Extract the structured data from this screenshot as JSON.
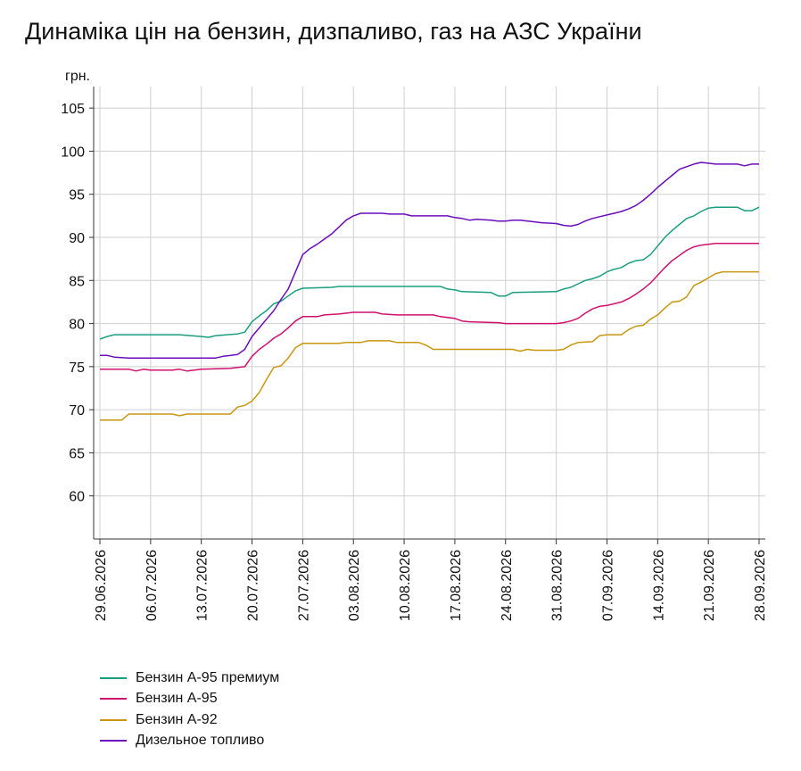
{
  "chart_data": {
    "type": "line",
    "title": "Динаміка цін на бензин, дизпаливо, газ на АЗС України",
    "ylabel": "грн.",
    "xlabel": "",
    "ylim": [
      55,
      107.5
    ],
    "yticks": [
      60,
      65,
      70,
      75,
      80,
      85,
      90,
      95,
      100,
      105
    ],
    "grid": true,
    "legend_position": "bottom-left",
    "xlim": [
      "2026-06-29",
      "2026-09-28"
    ],
    "x_tick_labels": [
      "29.06.2026",
      "06.07.2026",
      "13.07.2026",
      "20.07.2026",
      "27.07.2026",
      "03.08.2026",
      "10.08.2026",
      "17.08.2026",
      "24.08.2026",
      "31.08.2026",
      "07.09.2026",
      "14.09.2026",
      "21.09.2026",
      "28.09.2026"
    ],
    "x_tick_dates": [
      "2026-06-29",
      "2026-07-06",
      "2026-07-13",
      "2026-07-20",
      "2026-07-27",
      "2026-08-03",
      "2026-08-10",
      "2026-08-17",
      "2026-08-24",
      "2026-08-31",
      "2026-09-07",
      "2026-09-14",
      "2026-09-21",
      "2026-09-28"
    ],
    "series": [
      {
        "name": "Бензин А-95 премиум",
        "color": "#1a9e80",
        "points": [
          [
            "2026-06-29",
            78.2
          ],
          [
            "2026-06-30",
            78.5
          ],
          [
            "2026-07-01",
            78.7
          ],
          [
            "2026-07-05",
            78.7
          ],
          [
            "2026-07-10",
            78.7
          ],
          [
            "2026-07-13",
            78.5
          ],
          [
            "2026-07-14",
            78.4
          ],
          [
            "2026-07-15",
            78.6
          ],
          [
            "2026-07-18",
            78.8
          ],
          [
            "2026-07-19",
            79.0
          ],
          [
            "2026-07-20",
            80.2
          ],
          [
            "2026-07-21",
            80.9
          ],
          [
            "2026-07-22",
            81.5
          ],
          [
            "2026-07-23",
            82.3
          ],
          [
            "2026-07-24",
            82.6
          ],
          [
            "2026-07-25",
            83.2
          ],
          [
            "2026-07-26",
            83.8
          ],
          [
            "2026-07-27",
            84.1
          ],
          [
            "2026-07-31",
            84.2
          ],
          [
            "2026-08-01",
            84.3
          ],
          [
            "2026-08-05",
            84.3
          ],
          [
            "2026-08-10",
            84.3
          ],
          [
            "2026-08-15",
            84.3
          ],
          [
            "2026-08-16",
            84.0
          ],
          [
            "2026-08-17",
            83.9
          ],
          [
            "2026-08-18",
            83.7
          ],
          [
            "2026-08-22",
            83.6
          ],
          [
            "2026-08-23",
            83.2
          ],
          [
            "2026-08-24",
            83.2
          ],
          [
            "2026-08-25",
            83.6
          ],
          [
            "2026-08-31",
            83.7
          ],
          [
            "2026-09-01",
            84.0
          ],
          [
            "2026-09-02",
            84.2
          ],
          [
            "2026-09-04",
            85.0
          ],
          [
            "2026-09-05",
            85.2
          ],
          [
            "2026-09-06",
            85.5
          ],
          [
            "2026-09-07",
            86.0
          ],
          [
            "2026-09-08",
            86.3
          ],
          [
            "2026-09-09",
            86.5
          ],
          [
            "2026-09-10",
            87.0
          ],
          [
            "2026-09-11",
            87.3
          ],
          [
            "2026-09-12",
            87.4
          ],
          [
            "2026-09-13",
            88.0
          ],
          [
            "2026-09-14",
            89.0
          ],
          [
            "2026-09-15",
            90.0
          ],
          [
            "2026-09-16",
            90.8
          ],
          [
            "2026-09-17",
            91.5
          ],
          [
            "2026-09-18",
            92.2
          ],
          [
            "2026-09-19",
            92.5
          ],
          [
            "2026-09-20",
            93.0
          ],
          [
            "2026-09-21",
            93.4
          ],
          [
            "2026-09-22",
            93.5
          ],
          [
            "2026-09-25",
            93.5
          ],
          [
            "2026-09-26",
            93.1
          ],
          [
            "2026-09-27",
            93.1
          ],
          [
            "2026-09-28",
            93.5
          ]
        ]
      },
      {
        "name": "Бензин А-95",
        "color": "#d0106e",
        "points": [
          [
            "2026-06-29",
            74.7
          ],
          [
            "2026-07-03",
            74.7
          ],
          [
            "2026-07-04",
            74.5
          ],
          [
            "2026-07-05",
            74.7
          ],
          [
            "2026-07-06",
            74.6
          ],
          [
            "2026-07-09",
            74.6
          ],
          [
            "2026-07-10",
            74.7
          ],
          [
            "2026-07-11",
            74.5
          ],
          [
            "2026-07-12",
            74.6
          ],
          [
            "2026-07-13",
            74.7
          ],
          [
            "2026-07-17",
            74.8
          ],
          [
            "2026-07-19",
            75.0
          ],
          [
            "2026-07-20",
            76.2
          ],
          [
            "2026-07-21",
            77.0
          ],
          [
            "2026-07-22",
            77.6
          ],
          [
            "2026-07-23",
            78.3
          ],
          [
            "2026-07-24",
            78.8
          ],
          [
            "2026-07-25",
            79.5
          ],
          [
            "2026-07-26",
            80.3
          ],
          [
            "2026-07-27",
            80.8
          ],
          [
            "2026-07-29",
            80.8
          ],
          [
            "2026-07-30",
            81.0
          ],
          [
            "2026-08-01",
            81.1
          ],
          [
            "2026-08-03",
            81.3
          ],
          [
            "2026-08-06",
            81.3
          ],
          [
            "2026-08-07",
            81.1
          ],
          [
            "2026-08-09",
            81.0
          ],
          [
            "2026-08-14",
            81.0
          ],
          [
            "2026-08-15",
            80.8
          ],
          [
            "2026-08-17",
            80.6
          ],
          [
            "2026-08-18",
            80.3
          ],
          [
            "2026-08-19",
            80.2
          ],
          [
            "2026-08-23",
            80.1
          ],
          [
            "2026-08-24",
            80.0
          ],
          [
            "2026-08-30",
            80.0
          ],
          [
            "2026-08-31",
            80.0
          ],
          [
            "2026-09-01",
            80.1
          ],
          [
            "2026-09-02",
            80.3
          ],
          [
            "2026-09-03",
            80.6
          ],
          [
            "2026-09-04",
            81.2
          ],
          [
            "2026-09-05",
            81.7
          ],
          [
            "2026-09-06",
            82.0
          ],
          [
            "2026-09-07",
            82.1
          ],
          [
            "2026-09-08",
            82.3
          ],
          [
            "2026-09-09",
            82.5
          ],
          [
            "2026-09-10",
            82.9
          ],
          [
            "2026-09-11",
            83.4
          ],
          [
            "2026-09-12",
            84.0
          ],
          [
            "2026-09-13",
            84.7
          ],
          [
            "2026-09-14",
            85.6
          ],
          [
            "2026-09-15",
            86.5
          ],
          [
            "2026-09-16",
            87.3
          ],
          [
            "2026-09-17",
            87.9
          ],
          [
            "2026-09-18",
            88.5
          ],
          [
            "2026-09-19",
            88.9
          ],
          [
            "2026-09-20",
            89.1
          ],
          [
            "2026-09-21",
            89.2
          ],
          [
            "2026-09-22",
            89.3
          ],
          [
            "2026-09-28",
            89.3
          ]
        ]
      },
      {
        "name": "Бензин А-92",
        "color": "#c8960f",
        "points": [
          [
            "2026-06-29",
            68.8
          ],
          [
            "2026-07-02",
            68.8
          ],
          [
            "2026-07-03",
            69.5
          ],
          [
            "2026-07-09",
            69.5
          ],
          [
            "2026-07-10",
            69.3
          ],
          [
            "2026-07-11",
            69.5
          ],
          [
            "2026-07-17",
            69.5
          ],
          [
            "2026-07-18",
            70.3
          ],
          [
            "2026-07-19",
            70.5
          ],
          [
            "2026-07-20",
            71.0
          ],
          [
            "2026-07-21",
            72.0
          ],
          [
            "2026-07-22",
            73.5
          ],
          [
            "2026-07-23",
            74.9
          ],
          [
            "2026-07-24",
            75.1
          ],
          [
            "2026-07-25",
            76.0
          ],
          [
            "2026-07-26",
            77.2
          ],
          [
            "2026-07-27",
            77.7
          ],
          [
            "2026-08-01",
            77.7
          ],
          [
            "2026-08-02",
            77.8
          ],
          [
            "2026-08-04",
            77.8
          ],
          [
            "2026-08-05",
            78.0
          ],
          [
            "2026-08-08",
            78.0
          ],
          [
            "2026-08-09",
            77.8
          ],
          [
            "2026-08-12",
            77.8
          ],
          [
            "2026-08-13",
            77.5
          ],
          [
            "2026-08-14",
            77.0
          ],
          [
            "2026-08-25",
            77.0
          ],
          [
            "2026-08-26",
            76.8
          ],
          [
            "2026-08-27",
            77.0
          ],
          [
            "2026-08-28",
            76.9
          ],
          [
            "2026-08-31",
            76.9
          ],
          [
            "2026-09-01",
            77.0
          ],
          [
            "2026-09-02",
            77.5
          ],
          [
            "2026-09-03",
            77.8
          ],
          [
            "2026-09-05",
            77.9
          ],
          [
            "2026-09-06",
            78.6
          ],
          [
            "2026-09-07",
            78.7
          ],
          [
            "2026-09-09",
            78.7
          ],
          [
            "2026-09-10",
            79.3
          ],
          [
            "2026-09-11",
            79.7
          ],
          [
            "2026-09-12",
            79.8
          ],
          [
            "2026-09-13",
            80.5
          ],
          [
            "2026-09-14",
            81.0
          ],
          [
            "2026-09-15",
            81.8
          ],
          [
            "2026-09-16",
            82.5
          ],
          [
            "2026-09-17",
            82.6
          ],
          [
            "2026-09-18",
            83.1
          ],
          [
            "2026-09-19",
            84.4
          ],
          [
            "2026-09-20",
            84.8
          ],
          [
            "2026-09-21",
            85.3
          ],
          [
            "2026-09-22",
            85.8
          ],
          [
            "2026-09-23",
            86.0
          ],
          [
            "2026-09-28",
            86.0
          ]
        ]
      },
      {
        "name": "Дизельное топливо",
        "color": "#6a0dbd",
        "points": [
          [
            "2026-06-29",
            76.3
          ],
          [
            "2026-06-30",
            76.3
          ],
          [
            "2026-07-01",
            76.1
          ],
          [
            "2026-07-03",
            76.0
          ],
          [
            "2026-07-08",
            76.0
          ],
          [
            "2026-07-15",
            76.0
          ],
          [
            "2026-07-16",
            76.2
          ],
          [
            "2026-07-18",
            76.4
          ],
          [
            "2026-07-19",
            77.0
          ],
          [
            "2026-07-20",
            78.5
          ],
          [
            "2026-07-21",
            79.5
          ],
          [
            "2026-07-22",
            80.5
          ],
          [
            "2026-07-23",
            81.5
          ],
          [
            "2026-07-24",
            82.8
          ],
          [
            "2026-07-25",
            84.0
          ],
          [
            "2026-07-26",
            86.0
          ],
          [
            "2026-07-27",
            88.0
          ],
          [
            "2026-07-28",
            88.7
          ],
          [
            "2026-07-29",
            89.2
          ],
          [
            "2026-07-30",
            89.8
          ],
          [
            "2026-07-31",
            90.4
          ],
          [
            "2026-08-01",
            91.2
          ],
          [
            "2026-08-02",
            92.0
          ],
          [
            "2026-08-03",
            92.5
          ],
          [
            "2026-08-04",
            92.8
          ],
          [
            "2026-08-07",
            92.8
          ],
          [
            "2026-08-08",
            92.7
          ],
          [
            "2026-08-10",
            92.7
          ],
          [
            "2026-08-11",
            92.5
          ],
          [
            "2026-08-16",
            92.5
          ],
          [
            "2026-08-17",
            92.3
          ],
          [
            "2026-08-18",
            92.2
          ],
          [
            "2026-08-19",
            92.0
          ],
          [
            "2026-08-20",
            92.1
          ],
          [
            "2026-08-22",
            92.0
          ],
          [
            "2026-08-23",
            91.9
          ],
          [
            "2026-08-24",
            91.9
          ],
          [
            "2026-08-25",
            92.0
          ],
          [
            "2026-08-26",
            92.0
          ],
          [
            "2026-08-28",
            91.8
          ],
          [
            "2026-08-29",
            91.7
          ],
          [
            "2026-08-31",
            91.6
          ],
          [
            "2026-09-01",
            91.4
          ],
          [
            "2026-09-02",
            91.3
          ],
          [
            "2026-09-03",
            91.5
          ],
          [
            "2026-09-04",
            91.9
          ],
          [
            "2026-09-05",
            92.2
          ],
          [
            "2026-09-06",
            92.4
          ],
          [
            "2026-09-07",
            92.6
          ],
          [
            "2026-09-08",
            92.8
          ],
          [
            "2026-09-09",
            93.0
          ],
          [
            "2026-09-10",
            93.3
          ],
          [
            "2026-09-11",
            93.7
          ],
          [
            "2026-09-12",
            94.3
          ],
          [
            "2026-09-13",
            95.0
          ],
          [
            "2026-09-14",
            95.8
          ],
          [
            "2026-09-15",
            96.5
          ],
          [
            "2026-09-16",
            97.2
          ],
          [
            "2026-09-17",
            97.9
          ],
          [
            "2026-09-18",
            98.2
          ],
          [
            "2026-09-19",
            98.5
          ],
          [
            "2026-09-20",
            98.7
          ],
          [
            "2026-09-21",
            98.6
          ],
          [
            "2026-09-22",
            98.5
          ],
          [
            "2026-09-25",
            98.5
          ],
          [
            "2026-09-26",
            98.3
          ],
          [
            "2026-09-27",
            98.5
          ],
          [
            "2026-09-28",
            98.5
          ]
        ]
      }
    ]
  }
}
